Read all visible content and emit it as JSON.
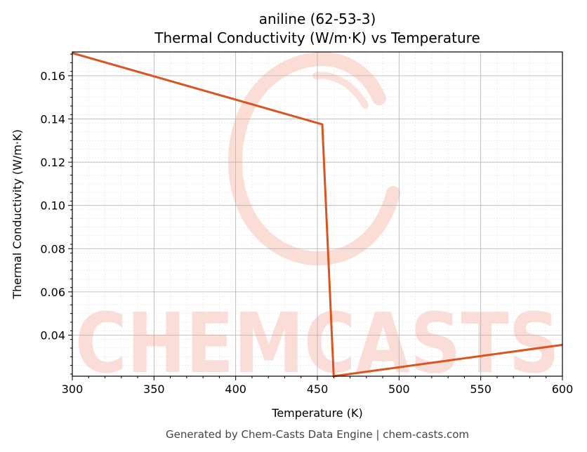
{
  "chart_data": {
    "type": "line",
    "title": "aniline (62-53-3)",
    "subtitle": "Thermal Conductivity (W/m·K) vs Temperature",
    "xlabel": "Temperature (K)",
    "ylabel": "Thermal Conductivity (W/m·K)",
    "xlim": [
      300,
      600
    ],
    "ylim": [
      0.021,
      0.171
    ],
    "xticks": [
      300,
      350,
      400,
      450,
      500,
      550,
      600
    ],
    "yticks": [
      0.04,
      0.06,
      0.08,
      0.1,
      0.12,
      0.14,
      0.16
    ],
    "ytick_labels": [
      "0.04",
      "0.06",
      "0.08",
      "0.10",
      "0.12",
      "0.14",
      "0.16"
    ],
    "grid": true,
    "series": [
      {
        "color": "#d9541e",
        "x": [
          300,
          453,
          460,
          600
        ],
        "y": [
          0.1705,
          0.1375,
          0.021,
          0.0355
        ]
      }
    ]
  },
  "watermark": {
    "text": "CHEMCASTS",
    "color": "#fbd4cc"
  },
  "footer": "Generated by Chem-Casts Data Engine | chem-casts.com"
}
